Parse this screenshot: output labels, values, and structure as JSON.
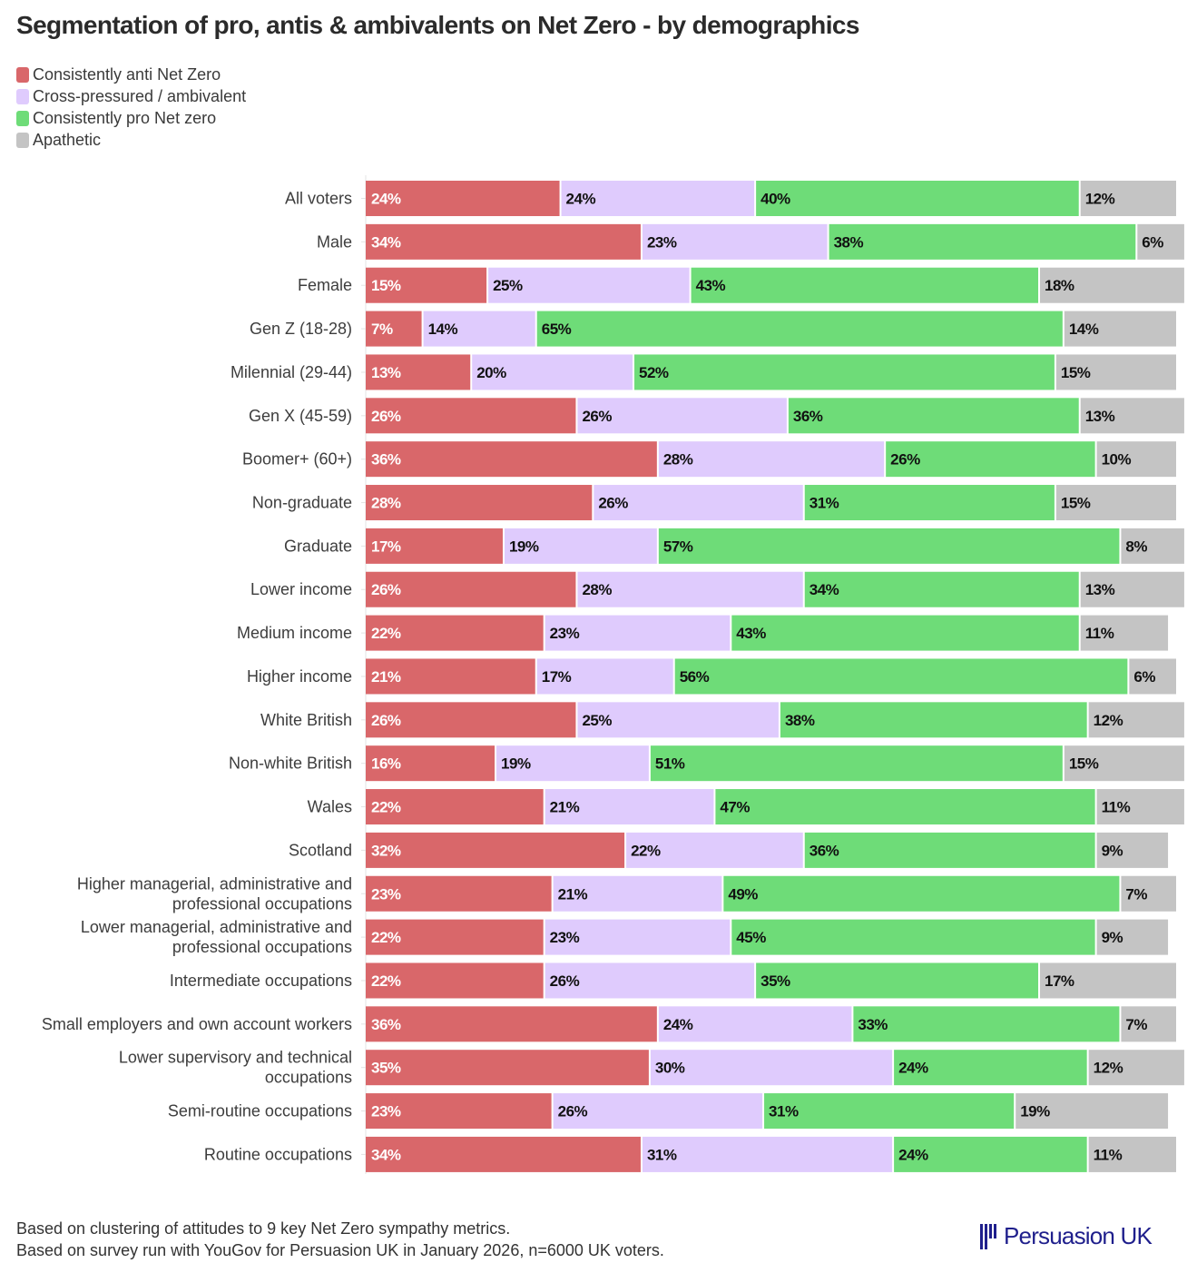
{
  "chart_data": {
    "type": "bar",
    "orientation": "horizontal",
    "stacked": true,
    "title": "Segmentation of pro, antis & ambivalents on Net Zero - by demographics",
    "xlabel": "",
    "ylabel": "",
    "xlim": [
      0,
      100
    ],
    "grid": false,
    "legend_position": "top-left",
    "categories": [
      "All voters",
      "Male",
      "Female",
      "Gen Z (18-28)",
      "Milennial (29-44)",
      "Gen X (45-59)",
      "Boomer+ (60+)",
      "Non-graduate",
      "Graduate",
      "Lower income",
      "Medium income",
      "Higher income",
      "White British",
      "Non-white British",
      "Wales",
      "Scotland",
      "Higher managerial, administrative and\nprofessional occupations",
      "Lower managerial, administrative and\nprofessional occupations",
      "Intermediate occupations",
      "Small employers and own account workers",
      "Lower supervisory and technical\noccupations",
      "Semi-routine occupations",
      "Routine occupations"
    ],
    "series": [
      {
        "name": "Consistently anti Net Zero",
        "color": "#d9676a",
        "label_color": "#ffffff",
        "values": [
          24,
          34,
          15,
          7,
          13,
          26,
          36,
          28,
          17,
          26,
          22,
          21,
          26,
          16,
          22,
          32,
          23,
          22,
          22,
          36,
          35,
          23,
          34
        ]
      },
      {
        "name": "Cross-pressured / ambivalent",
        "color": "#dfcbfd",
        "label_color": "#111111",
        "values": [
          24,
          23,
          25,
          14,
          20,
          26,
          28,
          26,
          19,
          28,
          23,
          17,
          25,
          19,
          21,
          22,
          21,
          23,
          26,
          24,
          30,
          26,
          31
        ]
      },
      {
        "name": "Consistently pro Net zero",
        "color": "#6edc78",
        "label_color": "#111111",
        "values": [
          40,
          38,
          43,
          65,
          52,
          36,
          26,
          31,
          57,
          34,
          43,
          56,
          38,
          51,
          47,
          36,
          49,
          45,
          35,
          33,
          24,
          31,
          24
        ]
      },
      {
        "name": "Apathetic",
        "color": "#c4c4c4",
        "label_color": "#111111",
        "values": [
          12,
          6,
          18,
          14,
          15,
          13,
          10,
          15,
          8,
          13,
          11,
          6,
          12,
          15,
          11,
          9,
          7,
          9,
          17,
          7,
          12,
          19,
          11
        ]
      }
    ],
    "value_suffix": "%"
  },
  "footer": {
    "line1": "Based on clustering of attitudes to 9 key Net Zero sympathy metrics.",
    "line2": "Based on survey run with YouGov for Persuasion UK in January 2026, n=6000 UK voters."
  },
  "logo": {
    "icon": "bars-logo-icon",
    "text": "Persuasion UK",
    "color": "#1f1f8c"
  }
}
